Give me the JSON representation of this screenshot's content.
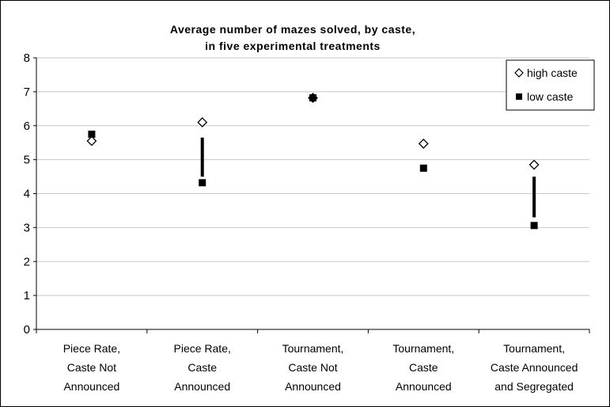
{
  "chart_data": {
    "type": "scatter",
    "title_lines": [
      "Average number of mazes solved, by caste,",
      "in five experimental treatments"
    ],
    "categories": [
      [
        "Piece Rate,",
        "Caste Not",
        "Announced"
      ],
      [
        "Piece Rate,",
        "Caste",
        "Announced"
      ],
      [
        "Tournament,",
        "Caste Not",
        "Announced"
      ],
      [
        "Tournament,",
        "Caste",
        "Announced"
      ],
      [
        "Tournament,",
        "Caste Announced",
        "and Segregated"
      ]
    ],
    "series": [
      {
        "name": "high caste",
        "marker": "open-diamond",
        "values": [
          5.55,
          6.1,
          6.82,
          5.47,
          4.85
        ]
      },
      {
        "name": "low caste",
        "marker": "filled-square",
        "values": [
          5.75,
          4.32,
          6.82,
          4.75,
          3.06
        ]
      }
    ],
    "gap_bars": [
      {
        "category_index": 1,
        "from": 4.5,
        "to": 5.65
      },
      {
        "category_index": 4,
        "from": 3.3,
        "to": 4.5
      }
    ],
    "ylim": [
      0,
      8
    ],
    "yticks": [
      "0",
      "1",
      "2",
      "3",
      "4",
      "5",
      "6",
      "7",
      "8"
    ],
    "grid": "horizontal",
    "legend_position": "top-right",
    "colors": {
      "marker": "#000000",
      "grid": "#c8c8c8",
      "background": "#ffffff"
    }
  }
}
